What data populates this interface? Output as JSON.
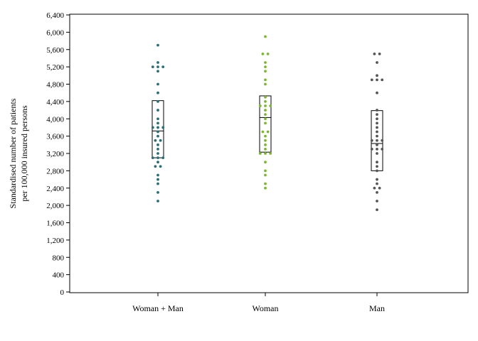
{
  "chart_data": {
    "type": "scatter",
    "subtype": "strip-plot-with-boxes",
    "ylabel_lines": [
      "Standardised number of patients",
      "per 100,000 insured persons"
    ],
    "ylim": [
      0,
      6400
    ],
    "yticks": [
      0,
      400,
      800,
      1200,
      1600,
      2000,
      2400,
      2800,
      3200,
      3600,
      4000,
      4400,
      4800,
      5200,
      5600,
      6000,
      6400
    ],
    "ytick_labels": [
      "0",
      "400",
      "800",
      "1,200",
      "1,600",
      "2,000",
      "2,400",
      "2,800",
      "3,200",
      "3,600",
      "4,000",
      "4,400",
      "4,800",
      "5,200",
      "5,600",
      "6,000",
      "6,400"
    ],
    "grid": false,
    "legend": "none",
    "categories": [
      "Woman + Man",
      "Woman",
      "Man"
    ],
    "series": [
      {
        "category": "Woman + Man",
        "color": "#2a6f72",
        "box": {
          "q1": 3100,
          "median": 3720,
          "q3": 4420
        },
        "points": [
          5700,
          5300,
          5200,
          5200,
          5200,
          5100,
          4800,
          4600,
          4400,
          4200,
          4000,
          3900,
          3800,
          3800,
          3800,
          3700,
          3600,
          3500,
          3500,
          3400,
          3300,
          3200,
          3100,
          3100,
          3100,
          3000,
          2900,
          2900,
          2700,
          2600,
          2500,
          2300,
          2100
        ]
      },
      {
        "category": "Woman",
        "color": "#7cb82f",
        "box": {
          "q1": 3230,
          "median": 4030,
          "q3": 4530
        },
        "points": [
          5900,
          5500,
          5500,
          5300,
          5200,
          5100,
          4900,
          4800,
          4500,
          4400,
          4300,
          4300,
          4300,
          4200,
          4100,
          4000,
          3900,
          3700,
          3700,
          3600,
          3500,
          3400,
          3300,
          3200,
          3200,
          3200,
          3000,
          2800,
          2700,
          2500,
          2400
        ]
      },
      {
        "category": "Man",
        "color": "#555555",
        "box": {
          "q1": 2800,
          "median": 3430,
          "q3": 4190
        },
        "points": [
          5500,
          5500,
          5300,
          5000,
          4900,
          4900,
          4900,
          4600,
          4200,
          4100,
          4000,
          3900,
          3800,
          3700,
          3600,
          3500,
          3500,
          3500,
          3400,
          3300,
          3300,
          3300,
          3200,
          3000,
          2900,
          2800,
          2600,
          2500,
          2400,
          2400,
          2300,
          2100,
          1900
        ]
      }
    ]
  }
}
